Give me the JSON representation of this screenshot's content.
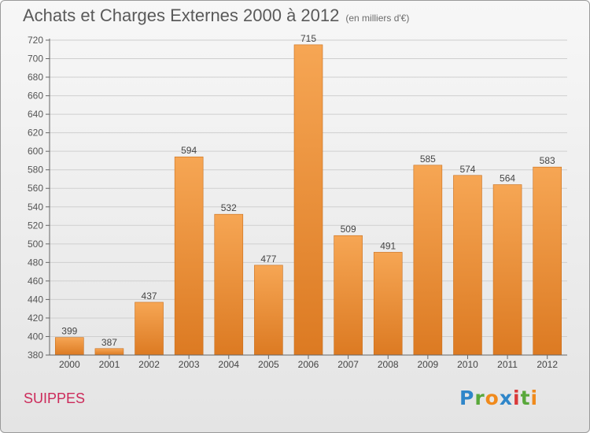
{
  "chart_data": {
    "type": "bar",
    "title": "Achats et Charges Externes 2000 à 2012",
    "subtitle": "(en milliers d'€)",
    "categories": [
      "2000",
      "2001",
      "2002",
      "2003",
      "2004",
      "2005",
      "2006",
      "2007",
      "2008",
      "2009",
      "2010",
      "2011",
      "2012"
    ],
    "values": [
      399,
      387,
      437,
      594,
      532,
      477,
      715,
      509,
      491,
      585,
      574,
      564,
      583
    ],
    "ylim": [
      380,
      720
    ],
    "yticks": [
      380,
      400,
      420,
      440,
      460,
      480,
      500,
      520,
      540,
      560,
      580,
      600,
      620,
      640,
      660,
      680,
      700,
      720
    ],
    "grid": true,
    "bar_color": "#f29b45"
  },
  "footer": {
    "place": "SUIPPES",
    "logo": "Proxiti"
  }
}
